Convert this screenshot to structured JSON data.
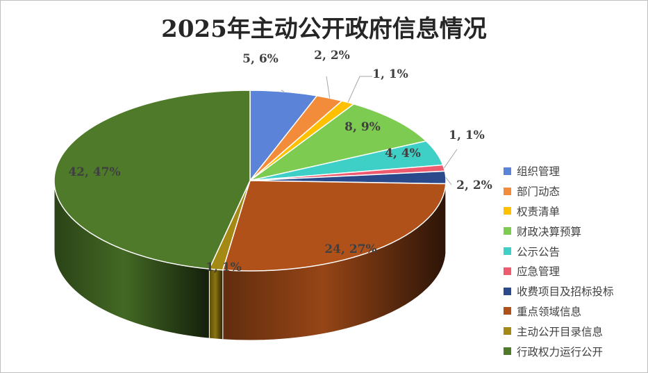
{
  "chart_data": {
    "type": "pie",
    "title": "2025年主动公开政府信息情况",
    "legend_position": "right",
    "categories": [
      "组织管理",
      "部门动态",
      "权责清单",
      "财政决算预算",
      "公示公告",
      "应急管理",
      "收费项目及招标投标",
      "重点领域信息",
      "主动公开目录信息",
      "行政权力运行公开"
    ],
    "values": [
      5,
      2,
      1,
      8,
      4,
      1,
      2,
      24,
      1,
      42
    ],
    "data_labels": [
      "5, 6%",
      "2, 2%",
      "1, 1%",
      "8, 9%",
      "4, 4%",
      "1, 1%",
      "2, 2%",
      "24, 27%",
      "1, 1%",
      "42, 47%"
    ],
    "colors": [
      "#5B84D9",
      "#F28C3A",
      "#FFC000",
      "#7ECB52",
      "#3ECFC6",
      "#EE5A6E",
      "#2A4A8C",
      "#B0511A",
      "#A48A14",
      "#4F7A2A"
    ]
  }
}
